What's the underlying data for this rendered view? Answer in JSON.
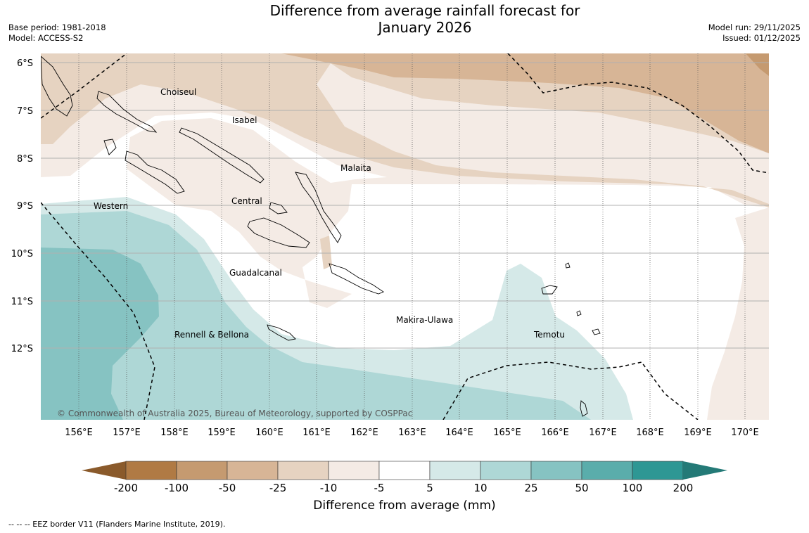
{
  "title_line1": "Difference from average rainfall forecast for",
  "title_line2": "January 2026",
  "meta_left": [
    "Base period: 1981-2018",
    "Model: ACCESS-S2"
  ],
  "meta_right": [
    "Model run: 29/11/2025",
    "Issued: 01/12/2025"
  ],
  "map": {
    "lat_labels": [
      "6°S",
      "7°S",
      "8°S",
      "9°S",
      "10°S",
      "11°S",
      "12°S"
    ],
    "lon_labels": [
      "156°E",
      "157°E",
      "158°E",
      "159°E",
      "160°E",
      "161°E",
      "162°E",
      "163°E",
      "164°E",
      "165°E",
      "166°E",
      "167°E",
      "168°E",
      "169°E",
      "170°E"
    ],
    "regions": [
      "Choiseul",
      "Isabel",
      "Malaita",
      "Western",
      "Central",
      "Guadalcanal",
      "Makira-Ulawa",
      "Rennell & Bellona",
      "Temotu"
    ],
    "copyright": "© Commonwealth of Australia 2025, Bureau of Meteorology, supported by COSPPac"
  },
  "colorbar": {
    "title": "Difference from average (mm)",
    "tick_labels": [
      "-200",
      "-100",
      "-50",
      "-25",
      "-10",
      "-5",
      "5",
      "10",
      "25",
      "50",
      "100",
      "200"
    ],
    "colors": [
      "#8a5a2b",
      "#b07a44",
      "#c59a70",
      "#d7b596",
      "#e6d3c1",
      "#f4ebe5",
      "#ffffff",
      "#d5e9e8",
      "#aed7d6",
      "#86c3c2",
      "#5aadab",
      "#2e9794",
      "#247a77"
    ]
  },
  "eez_note": "--  --  -- EEZ border V11 (Flanders Marine Institute, 2019)."
}
